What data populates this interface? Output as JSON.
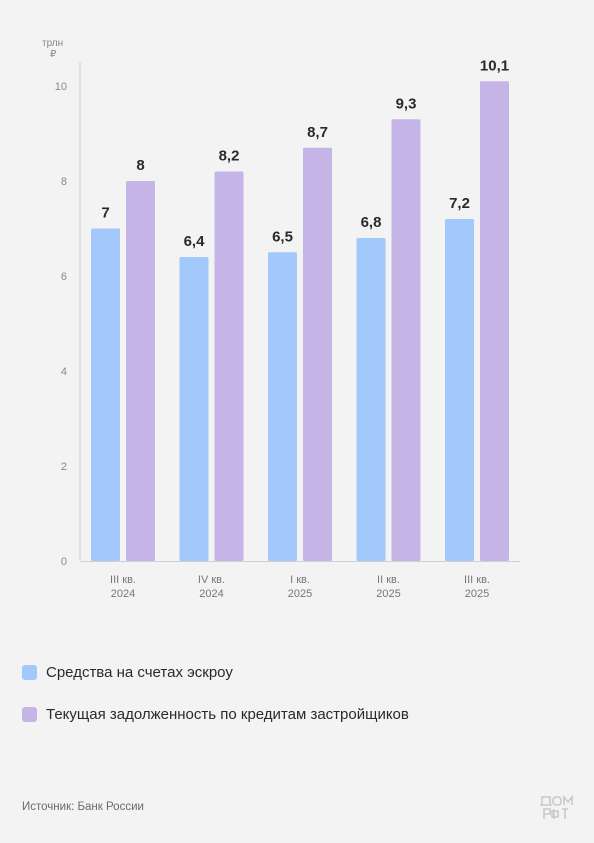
{
  "chart_data": {
    "type": "bar",
    "unit_label": [
      "трлн",
      "₽"
    ],
    "categories": [
      [
        "III кв.",
        "2024"
      ],
      [
        "IV кв.",
        "2024"
      ],
      [
        "I кв.",
        "2025"
      ],
      [
        "II кв.",
        "2025"
      ],
      [
        "III кв.",
        "2025"
      ]
    ],
    "series": [
      {
        "name": "Средства на счетах эскроу",
        "color": "#a3c8fb",
        "values": [
          7,
          6.4,
          6.5,
          6.8,
          7.2
        ],
        "labels": [
          "7",
          "6,4",
          "6,5",
          "6,8",
          "7,2"
        ]
      },
      {
        "name": "Текущая задолженность по кредитам застройщиков",
        "color": "#c4b5e6",
        "values": [
          8,
          8.2,
          8.7,
          9.3,
          10.1
        ],
        "labels": [
          "8",
          "8,2",
          "8,7",
          "9,3",
          "10,1"
        ]
      }
    ],
    "yticks": [
      0,
      2,
      4,
      6,
      8,
      10
    ],
    "ylim": [
      0,
      10.4
    ],
    "grid": false,
    "legend_position": "bottom-left"
  },
  "footer": {
    "source": "Источник: Банк России",
    "logo_icon": "dom-rf-logo-icon"
  }
}
